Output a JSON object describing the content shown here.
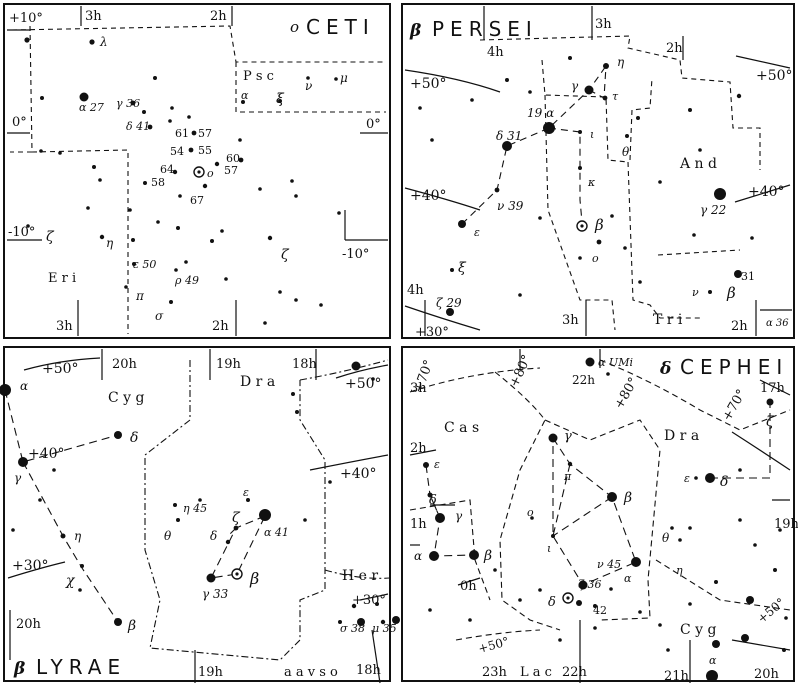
{
  "charts": [
    {
      "id": "ceti",
      "title_greek": "o",
      "title_name": "CETI",
      "labels": {
        "dec_p10": "+10°",
        "ra_3h_top": "3h",
        "ra_2h_top": "2h",
        "psc": "P s c",
        "dec_0_left": "0°",
        "dec_0_right": "0°",
        "dec_m10_left": "-10°",
        "dec_m10_right": "-10°",
        "eri": "E r i",
        "ra_3h_bot": "3h",
        "ra_2h_bot": "2h",
        "lambda": "λ",
        "alpha27": "α 27",
        "gamma36": "γ 36",
        "delta41": "δ 41",
        "s61": "61",
        "s57a": "57",
        "s54": "54",
        "s55": "55",
        "s64": "64",
        "omicron": "o",
        "s60": "60",
        "s57b": "57",
        "s58": "58",
        "s67": "67",
        "alpha_psc": "α",
        "xi": "ξ",
        "nu": "ν",
        "mu": "μ",
        "zeta_left": "ζ",
        "eta": "η",
        "epsilon50": "ε 50",
        "rho49": "ρ 49",
        "pi": "π",
        "sigma": "σ",
        "zeta_right": "ζ"
      }
    },
    {
      "id": "persei",
      "title_greek": "β",
      "title_name": "PERSEI",
      "labels": {
        "ra_3h_top": "3h",
        "ra_4h_top": "4h",
        "ra_2h_top": "2h",
        "dec_p50_left": "+50°",
        "dec_p50_right": "+50°",
        "dec_p40_left": "+40°",
        "dec_p40_right": "+40°",
        "dec_p30": "+30°",
        "and": "A n d",
        "tri": "T r i",
        "eta": "η",
        "gamma": "γ",
        "tau": "τ",
        "alpha19": "19 α",
        "delta31": "δ 31",
        "iota": "ι",
        "theta": "θ",
        "kappa": "κ",
        "nu39": "ν 39",
        "epsilon": "ε",
        "beta": "β",
        "omicron": "o",
        "xi": "ξ",
        "zeta29": "ζ 29",
        "gamma22": "γ 22",
        "s31": "31",
        "nu_tri": "ν",
        "beta_tri": "β",
        "alpha36": "α 36",
        "ra_4h_bot": "4h",
        "ra_3h_bot": "3h",
        "ra_2h_bot": "2h"
      }
    },
    {
      "id": "lyrae",
      "title_greek": "β",
      "title_name": "LYRAE",
      "labels": {
        "alpha_cyg": "α",
        "dec_p50_left": "+50°",
        "ra_20h_top": "20h",
        "ra_19h_top": "19h",
        "ra_18h_top": "18h",
        "dra": "D r a",
        "dec_p50_right": "+50°",
        "cyg": "C y g",
        "delta_cyg": "δ",
        "dec_p40_left": "+40°",
        "dec_p40_right": "+40°",
        "gamma_cyg": "γ",
        "eta_cyg": "η",
        "chi": "χ",
        "beta_cyg": "β",
        "dec_p30_left": "+30°",
        "dec_p30_right": "+30°",
        "ra_20h_bot": "20h",
        "her": "H e r",
        "eta45": "η 45",
        "theta": "θ",
        "delta": "δ",
        "zeta": "ζ",
        "epsilon": "ε",
        "alpha41": "α 41",
        "gamma33": "γ 33",
        "beta": "β",
        "sigma38": "σ 38",
        "mu35": "μ 35",
        "ra_19h_bot": "19h",
        "aavso": "a a v s o",
        "ra_18h_bot": "18h"
      }
    },
    {
      "id": "cephei",
      "title_greek": "δ",
      "title_name": "CEPHEI",
      "labels": {
        "dec_p70": "+70°",
        "ra_3h": "3h",
        "dec_p80_left": "+80°",
        "alpha_umi": "α UMi",
        "ra_22h_top": "22h",
        "dec_p80_right": "+80°",
        "ra_17h": "17h",
        "dec_p70_right": "+70°",
        "cas": "C a s",
        "ra_2h": "2h",
        "dra": "D r a",
        "gamma": "γ",
        "pi": "π",
        "zeta_dra": "ζ",
        "epsilon_cas": "ε",
        "delta_cas": "δ",
        "epsilon_dra": "ε",
        "delta_dra": "δ",
        "ra_1h": "1h",
        "gamma_cas": "γ",
        "beta": "β",
        "omicron": "o",
        "iota": "ι",
        "alpha_cas": "α",
        "beta_cas": "β",
        "nu45": "ν 45",
        "theta": "θ",
        "eta": "η",
        "alpha_cep": "α",
        "ra_0h": "0h",
        "ra_19h": "19h",
        "delta": "δ",
        "zeta36": "ζ 36",
        "s42": "42",
        "cyg": "C y g",
        "dec_p50_bot": "+50°",
        "dec_p50_right": "+50°",
        "ra_23h": "23h",
        "lac": "L a c",
        "ra_22h_bot": "22h",
        "ra_21h": "21h",
        "alpha_cyg": "α",
        "ra_20h": "20h"
      }
    }
  ]
}
